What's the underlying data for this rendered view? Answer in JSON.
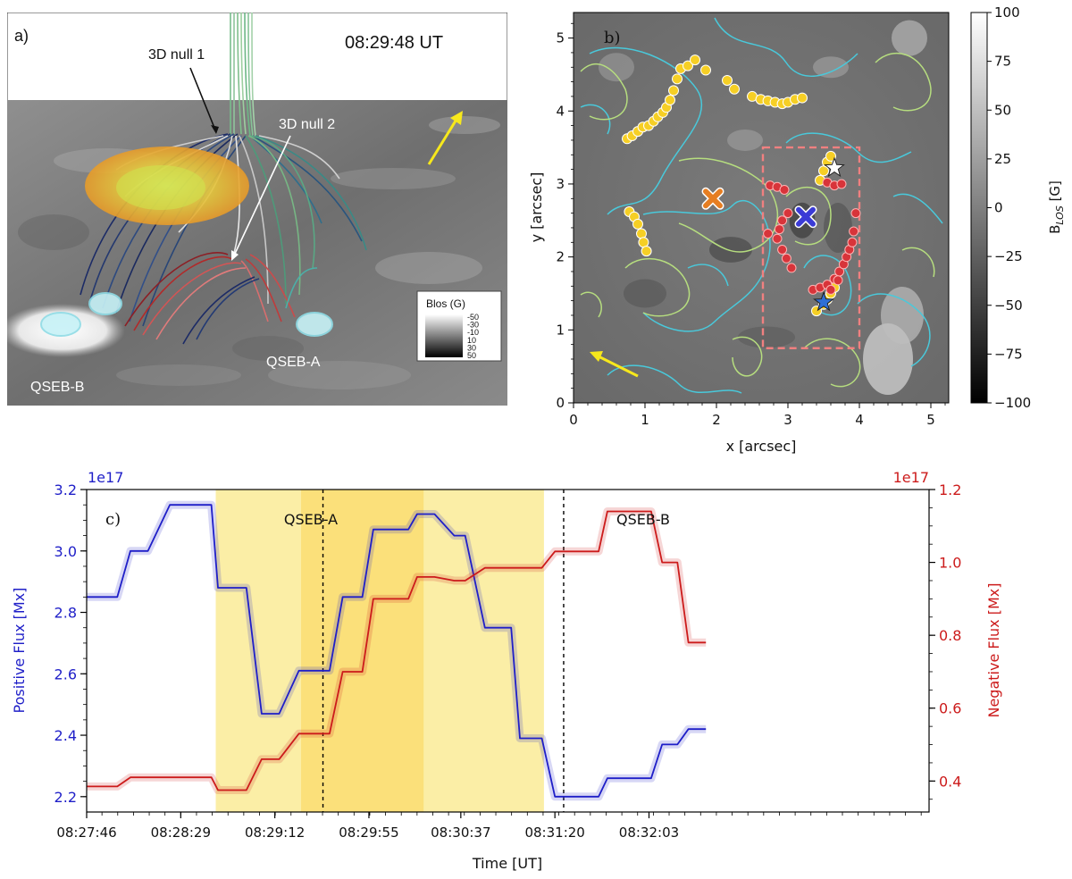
{
  "panel_a": {
    "label": "a)",
    "time": "08:29:48 UT",
    "null1": "3D null 1",
    "null2": "3D null 2",
    "qseb_a": "QSEB-A",
    "qseb_b": "QSEB-B",
    "colorbar_title": "Blos (G)",
    "colorbar_ticks": [
      "-50",
      "-30",
      "-10",
      "10",
      "30",
      "50"
    ]
  },
  "colors": {
    "positive": "#1f1fc8",
    "negative": "#cc1b1b",
    "shade_light": "#fbeea6",
    "shade_dark": "#fbe07a",
    "contour_cyan": "#49c9db",
    "contour_green": "#b6dd7f",
    "marker_yellow": "#f6cf25",
    "marker_red": "#d8343a"
  },
  "chart_data": [
    {
      "type": "scatter",
      "panel": "b)",
      "title": "",
      "xlabel": "x [arcsec]",
      "ylabel": "y [arcsec]",
      "xlim": [
        0,
        5.25
      ],
      "ylim": [
        0,
        5.35
      ],
      "xticks": [
        "0",
        "1",
        "2",
        "3",
        "4",
        "5"
      ],
      "yticks": [
        "0",
        "1",
        "2",
        "3",
        "4",
        "5"
      ],
      "colorbar": {
        "label": "B_LOS [G]",
        "range": [
          -100,
          100
        ],
        "ticks": [
          "100",
          "75",
          "50",
          "25",
          "0",
          "−25",
          "−50",
          "−75",
          "−100"
        ]
      },
      "box": {
        "x": [
          2.65,
          4.0
        ],
        "y": [
          0.75,
          3.5
        ]
      },
      "yellow_points": [
        [
          0.75,
          3.62
        ],
        [
          0.82,
          3.66
        ],
        [
          0.9,
          3.72
        ],
        [
          0.97,
          3.78
        ],
        [
          1.05,
          3.8
        ],
        [
          1.12,
          3.86
        ],
        [
          1.18,
          3.92
        ],
        [
          1.25,
          3.98
        ],
        [
          1.3,
          4.05
        ],
        [
          1.35,
          4.15
        ],
        [
          1.4,
          4.28
        ],
        [
          1.45,
          4.44
        ],
        [
          1.5,
          4.58
        ],
        [
          1.6,
          4.62
        ],
        [
          1.7,
          4.7
        ],
        [
          1.85,
          4.56
        ],
        [
          2.15,
          4.42
        ],
        [
          2.25,
          4.3
        ],
        [
          2.5,
          4.2
        ],
        [
          2.62,
          4.16
        ],
        [
          2.72,
          4.14
        ],
        [
          2.82,
          4.12
        ],
        [
          2.92,
          4.1
        ],
        [
          3.0,
          4.12
        ],
        [
          3.1,
          4.16
        ],
        [
          3.2,
          4.18
        ],
        [
          0.78,
          2.62
        ],
        [
          0.85,
          2.55
        ],
        [
          0.9,
          2.45
        ],
        [
          0.95,
          2.32
        ],
        [
          0.98,
          2.2
        ],
        [
          1.02,
          2.08
        ],
        [
          3.45,
          3.05
        ],
        [
          3.5,
          3.18
        ],
        [
          3.55,
          3.3
        ],
        [
          3.6,
          3.38
        ],
        [
          3.5,
          1.35
        ],
        [
          3.4,
          1.26
        ],
        [
          3.55,
          1.42
        ],
        [
          3.6,
          1.5
        ],
        [
          3.65,
          1.58
        ]
      ],
      "red_points": [
        [
          2.75,
          2.98
        ],
        [
          2.85,
          2.96
        ],
        [
          2.95,
          2.92
        ],
        [
          3.0,
          2.6
        ],
        [
          2.92,
          2.5
        ],
        [
          2.88,
          2.38
        ],
        [
          2.85,
          2.25
        ],
        [
          2.92,
          2.1
        ],
        [
          2.98,
          1.98
        ],
        [
          3.05,
          1.85
        ],
        [
          2.72,
          2.32
        ],
        [
          3.55,
          3.02
        ],
        [
          3.65,
          2.98
        ],
        [
          3.75,
          3.0
        ],
        [
          3.35,
          1.55
        ],
        [
          3.45,
          1.58
        ],
        [
          3.55,
          1.62
        ],
        [
          3.65,
          1.7
        ],
        [
          3.72,
          1.8
        ],
        [
          3.78,
          1.9
        ],
        [
          3.82,
          2.0
        ],
        [
          3.86,
          2.1
        ],
        [
          3.9,
          2.2
        ],
        [
          3.92,
          2.35
        ],
        [
          3.95,
          2.6
        ],
        [
          3.7,
          1.68
        ],
        [
          3.6,
          1.55
        ]
      ],
      "markers": [
        {
          "name": "orange-x",
          "x": 1.95,
          "y": 2.8,
          "color": "#e67e22"
        },
        {
          "name": "blue-x",
          "x": 3.25,
          "y": 2.55,
          "color": "#3b3bd6"
        },
        {
          "name": "white-star",
          "x": 3.65,
          "y": 3.22,
          "color": "#ffffff"
        },
        {
          "name": "blue-star",
          "x": 3.5,
          "y": 1.38,
          "color": "#2f6fd6"
        }
      ]
    },
    {
      "type": "line",
      "panel": "c)",
      "xlabel": "Time [UT]",
      "ylabel_left": "Positive Flux [Mx]",
      "ylabel_right": "Negative Flux [Mx]",
      "left_multiplier": "1e17",
      "right_multiplier": "1e17",
      "x_unit": "seconds since 08:27:46",
      "xlim": [
        0,
        385
      ],
      "xticks": [
        {
          "v": 0,
          "label": "08:27:46"
        },
        {
          "v": 43,
          "label": "08:28:29"
        },
        {
          "v": 86,
          "label": "08:29:12"
        },
        {
          "v": 129,
          "label": "08:29:55"
        },
        {
          "v": 171,
          "label": "08:30:37"
        },
        {
          "v": 214,
          "label": "08:31:20"
        },
        {
          "v": 257,
          "label": "08:32:03"
        }
      ],
      "ylim_left": [
        2.15,
        3.2
      ],
      "ylim_right": [
        0.315,
        1.2
      ],
      "yticks_left": [
        2.2,
        2.4,
        2.6,
        2.8,
        3.0,
        3.2
      ],
      "yticks_right": [
        0.4,
        0.6,
        0.8,
        1.0,
        1.2
      ],
      "shaded_regions": [
        {
          "name": "QSEB-A",
          "start": 59,
          "end": 154
        },
        {
          "name": "QSEB-B",
          "start": 98,
          "end": 209
        },
        {
          "name": "overlap",
          "start": 98,
          "end": 154
        }
      ],
      "region_labels": {
        "qseb_a": "QSEB-A",
        "qseb_b": "QSEB-B"
      },
      "vlines": [
        108,
        218
      ],
      "series": [
        {
          "name": "Positive Flux",
          "axis": "left",
          "color": "#1f1fc8",
          "x": [
            0,
            11,
            14,
            20,
            25,
            28,
            38,
            44,
            47,
            57,
            60,
            65,
            70,
            73,
            80,
            84,
            88,
            97,
            104,
            109,
            111,
            117,
            121,
            126,
            131,
            137,
            141,
            147,
            151,
            155,
            159,
            168,
            172,
            173,
            182,
            185,
            190,
            194,
            198,
            204,
            208,
            214,
            226,
            234,
            238,
            245,
            248,
            258,
            263,
            270,
            275,
            283
          ],
          "y": [
            2.85,
            2.85,
            2.85,
            3.0,
            3.0,
            3.0,
            3.15,
            3.15,
            3.15,
            3.15,
            2.88,
            2.88,
            2.88,
            2.88,
            2.47,
            2.47,
            2.47,
            2.61,
            2.61,
            2.61,
            2.61,
            2.85,
            2.85,
            2.85,
            3.07,
            3.07,
            3.07,
            3.07,
            3.12,
            3.12,
            3.12,
            3.05,
            3.05,
            3.05,
            2.75,
            2.75,
            2.75,
            2.75,
            2.39,
            2.39,
            2.39,
            2.2,
            2.2,
            2.2,
            2.26,
            2.26,
            2.26,
            2.26,
            2.37,
            2.37,
            2.42,
            2.42
          ]
        },
        {
          "name": "Negative Flux",
          "axis": "right",
          "color": "#cc1b1b",
          "x": [
            0,
            11,
            14,
            20,
            25,
            28,
            38,
            44,
            47,
            57,
            60,
            65,
            70,
            73,
            80,
            84,
            88,
            97,
            104,
            109,
            111,
            117,
            121,
            126,
            131,
            137,
            141,
            147,
            151,
            155,
            159,
            168,
            172,
            173,
            182,
            185,
            190,
            194,
            198,
            204,
            208,
            214,
            226,
            234,
            238,
            245,
            248,
            258,
            263,
            270,
            275,
            283
          ],
          "y": [
            0.385,
            0.385,
            0.385,
            0.41,
            0.41,
            0.41,
            0.41,
            0.41,
            0.41,
            0.41,
            0.375,
            0.375,
            0.375,
            0.375,
            0.46,
            0.46,
            0.46,
            0.53,
            0.53,
            0.53,
            0.53,
            0.7,
            0.7,
            0.7,
            0.9,
            0.9,
            0.9,
            0.9,
            0.96,
            0.96,
            0.96,
            0.95,
            0.95,
            0.95,
            0.985,
            0.985,
            0.985,
            0.985,
            0.985,
            0.985,
            0.985,
            1.03,
            1.03,
            1.03,
            1.14,
            1.14,
            1.14,
            1.14,
            1.0,
            1.0,
            0.78,
            0.78
          ]
        }
      ]
    }
  ]
}
